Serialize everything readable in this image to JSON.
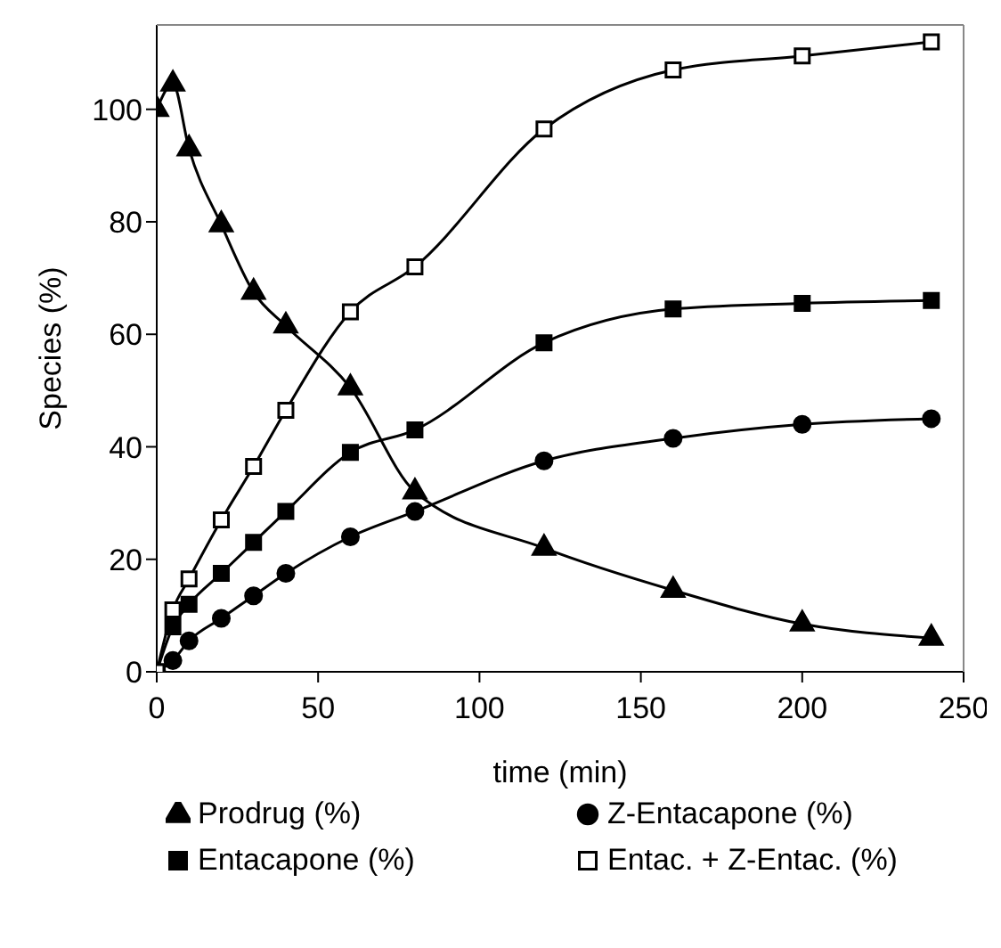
{
  "chart_data": {
    "type": "line",
    "xlabel": "time (min)",
    "ylabel": "Species (%)",
    "x": [
      0,
      5,
      10,
      20,
      30,
      40,
      60,
      80,
      120,
      160,
      200,
      240
    ],
    "xlim": [
      0,
      250
    ],
    "xticks": [
      0,
      50,
      100,
      150,
      200,
      250
    ],
    "ylim": [
      0,
      115
    ],
    "yticks": [
      0,
      20,
      40,
      60,
      80,
      100
    ],
    "grid": false,
    "legend": "bottom",
    "line_style": "solid",
    "series": [
      {
        "name": "Prodrug (%)",
        "color": "#000000",
        "marker": "triangle",
        "values": [
          100,
          104.5,
          93,
          79.5,
          67.5,
          61.5,
          50.5,
          32,
          22,
          14.5,
          8.5,
          6
        ]
      },
      {
        "name": "Z-Entacapone (%)",
        "color": "#000000",
        "marker": "circle",
        "values": [
          0,
          2,
          5.5,
          9.5,
          13.5,
          17.5,
          24,
          28.5,
          37.5,
          41.5,
          44,
          45
        ]
      },
      {
        "name": "Entacapone (%)",
        "color": "#000000",
        "marker": "square",
        "values": [
          0,
          8,
          12,
          17.5,
          23,
          28.5,
          39,
          43,
          58.5,
          64.5,
          65.5,
          66
        ]
      },
      {
        "name": "Entac. + Z-Entac. (%)",
        "color": "#000000",
        "marker": "square",
        "values": [
          0,
          11,
          16.5,
          27,
          36.5,
          46.5,
          64,
          72,
          96.5,
          107,
          109.5,
          112
        ]
      }
    ]
  }
}
